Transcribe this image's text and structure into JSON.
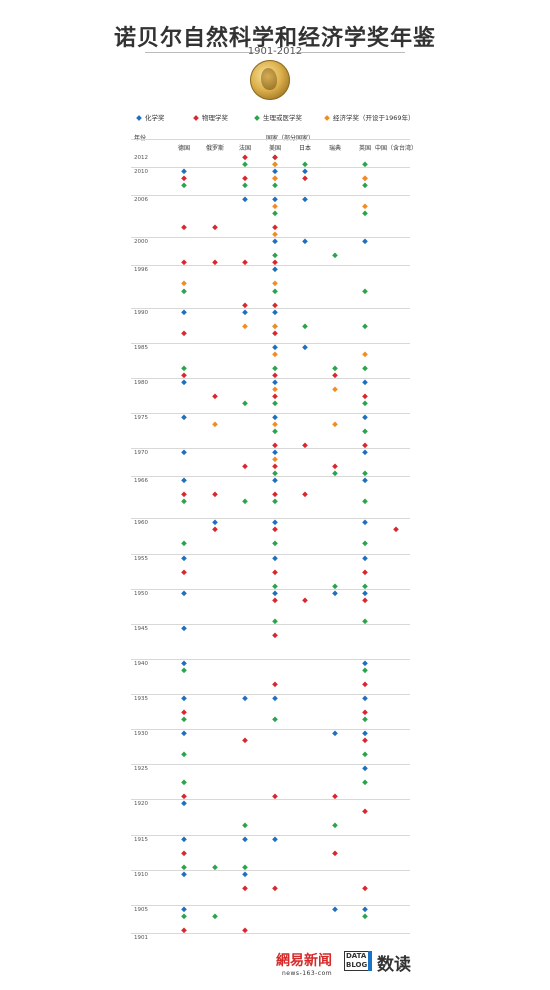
{
  "header": {
    "title": "诺贝尔自然科学和经济学奖年鉴",
    "subtitle": "1901-2012"
  },
  "legend": [
    {
      "label": "化学奖",
      "color": "#1f6fc1"
    },
    {
      "label": "物理学奖",
      "color": "#d9272e"
    },
    {
      "label": "生理或医学奖",
      "color": "#2aa44a"
    },
    {
      "label": "经济学奖（开设于1969年）",
      "color": "#f28c20"
    }
  ],
  "axis": {
    "year_label": "年份",
    "country_group_label": "国家（部分国家）"
  },
  "footer": {
    "netease": "網易新闻",
    "netease_url": "news-163-com",
    "datablog": "DATA BLOG",
    "shudu": "数读"
  },
  "chart_data": {
    "type": "scatter",
    "title": "诺贝尔自然科学和经济学奖年鉴",
    "subtitle": "1901-2012",
    "xlabel": "国家（部分国家）",
    "ylabel": "年份",
    "countries": [
      "德国",
      "俄罗斯",
      "法国",
      "美国",
      "日本",
      "瑞典",
      "英国",
      "中国（含台湾）"
    ],
    "year_ticks": [
      2012,
      2010,
      2006,
      2000,
      1996,
      1990,
      1985,
      1980,
      1975,
      1970,
      1966,
      1960,
      1955,
      1950,
      1945,
      1940,
      1935,
      1930,
      1925,
      1920,
      1915,
      1910,
      1905,
      1901
    ],
    "ylim": [
      1901,
      2012
    ],
    "series": [
      {
        "name": "化学奖",
        "color": "#1f6fc1",
        "points": [
          {
            "country": "美国",
            "year": 2012
          },
          {
            "country": "德国",
            "year": 2010
          },
          {
            "country": "美国",
            "year": 2010
          },
          {
            "country": "日本",
            "year": 2010
          },
          {
            "country": "法国",
            "year": 2006
          },
          {
            "country": "美国",
            "year": 2006
          },
          {
            "country": "日本",
            "year": 2006
          },
          {
            "country": "美国",
            "year": 2000
          },
          {
            "country": "日本",
            "year": 2000
          },
          {
            "country": "英国",
            "year": 2000
          },
          {
            "country": "美国",
            "year": 1996
          },
          {
            "country": "德国",
            "year": 1990
          },
          {
            "country": "法国",
            "year": 1990
          },
          {
            "country": "美国",
            "year": 1990
          },
          {
            "country": "美国",
            "year": 1985
          },
          {
            "country": "日本",
            "year": 1985
          },
          {
            "country": "德国",
            "year": 1980
          },
          {
            "country": "美国",
            "year": 1980
          },
          {
            "country": "英国",
            "year": 1980
          },
          {
            "country": "德国",
            "year": 1975
          },
          {
            "country": "美国",
            "year": 1975
          },
          {
            "country": "英国",
            "year": 1975
          },
          {
            "country": "德国",
            "year": 1970
          },
          {
            "country": "美国",
            "year": 1970
          },
          {
            "country": "英国",
            "year": 1970
          },
          {
            "country": "德国",
            "year": 1966
          },
          {
            "country": "美国",
            "year": 1966
          },
          {
            "country": "英国",
            "year": 1966
          },
          {
            "country": "俄罗斯",
            "year": 1960
          },
          {
            "country": "美国",
            "year": 1960
          },
          {
            "country": "英国",
            "year": 1960
          },
          {
            "country": "德国",
            "year": 1955
          },
          {
            "country": "美国",
            "year": 1955
          },
          {
            "country": "英国",
            "year": 1955
          },
          {
            "country": "德国",
            "year": 1950
          },
          {
            "country": "美国",
            "year": 1950
          },
          {
            "country": "瑞典",
            "year": 1950
          },
          {
            "country": "英国",
            "year": 1950
          },
          {
            "country": "德国",
            "year": 1945
          },
          {
            "country": "德国",
            "year": 1940
          },
          {
            "country": "英国",
            "year": 1940
          },
          {
            "country": "德国",
            "year": 1935
          },
          {
            "country": "法国",
            "year": 1935
          },
          {
            "country": "美国",
            "year": 1935
          },
          {
            "country": "英国",
            "year": 1935
          },
          {
            "country": "德国",
            "year": 1930
          },
          {
            "country": "瑞典",
            "year": 1930
          },
          {
            "country": "英国",
            "year": 1930
          },
          {
            "country": "英国",
            "year": 1925
          },
          {
            "country": "德国",
            "year": 1920
          },
          {
            "country": "德国",
            "year": 1915
          },
          {
            "country": "法国",
            "year": 1915
          },
          {
            "country": "美国",
            "year": 1915
          },
          {
            "country": "德国",
            "year": 1910
          },
          {
            "country": "法国",
            "year": 1910
          },
          {
            "country": "德国",
            "year": 1905
          },
          {
            "country": "瑞典",
            "year": 1905
          },
          {
            "country": "英国",
            "year": 1905
          }
        ]
      },
      {
        "name": "物理学奖",
        "color": "#d9272e",
        "points": [
          {
            "country": "法国",
            "year": 2012
          },
          {
            "country": "美国",
            "year": 2012
          },
          {
            "country": "德国",
            "year": 2009
          },
          {
            "country": "法国",
            "year": 2009
          },
          {
            "country": "美国",
            "year": 2009
          },
          {
            "country": "英国",
            "year": 2009
          },
          {
            "country": "日本",
            "year": 2009
          },
          {
            "country": "德国",
            "year": 2002
          },
          {
            "country": "俄罗斯",
            "year": 2002
          },
          {
            "country": "美国",
            "year": 2002
          },
          {
            "country": "德国",
            "year": 1997
          },
          {
            "country": "俄罗斯",
            "year": 1997
          },
          {
            "country": "法国",
            "year": 1997
          },
          {
            "country": "美国",
            "year": 1997
          },
          {
            "country": "法国",
            "year": 1991
          },
          {
            "country": "美国",
            "year": 1991
          },
          {
            "country": "德国",
            "year": 1987
          },
          {
            "country": "美国",
            "year": 1987
          },
          {
            "country": "德国",
            "year": 1981
          },
          {
            "country": "美国",
            "year": 1981
          },
          {
            "country": "瑞典",
            "year": 1981
          },
          {
            "country": "俄罗斯",
            "year": 1978
          },
          {
            "country": "美国",
            "year": 1978
          },
          {
            "country": "英国",
            "year": 1978
          },
          {
            "country": "美国",
            "year": 1971
          },
          {
            "country": "日本",
            "year": 1971
          },
          {
            "country": "英国",
            "year": 1971
          },
          {
            "country": "法国",
            "year": 1968
          },
          {
            "country": "美国",
            "year": 1968
          },
          {
            "country": "瑞典",
            "year": 1968
          },
          {
            "country": "德国",
            "year": 1964
          },
          {
            "country": "俄罗斯",
            "year": 1964
          },
          {
            "country": "美国",
            "year": 1964
          },
          {
            "country": "日本",
            "year": 1964
          },
          {
            "country": "俄罗斯",
            "year": 1959
          },
          {
            "country": "美国",
            "year": 1959
          },
          {
            "country": "中国（含台湾）",
            "year": 1959
          },
          {
            "country": "德国",
            "year": 1953
          },
          {
            "country": "美国",
            "year": 1953
          },
          {
            "country": "英国",
            "year": 1953
          },
          {
            "country": "美国",
            "year": 1949
          },
          {
            "country": "日本",
            "year": 1949
          },
          {
            "country": "英国",
            "year": 1949
          },
          {
            "country": "美国",
            "year": 1944
          },
          {
            "country": "美国",
            "year": 1937
          },
          {
            "country": "英国",
            "year": 1937
          },
          {
            "country": "德国",
            "year": 1933
          },
          {
            "country": "英国",
            "year": 1933
          },
          {
            "country": "法国",
            "year": 1929
          },
          {
            "country": "英国",
            "year": 1929
          },
          {
            "country": "德国",
            "year": 1921
          },
          {
            "country": "美国",
            "year": 1921
          },
          {
            "country": "瑞典",
            "year": 1921
          },
          {
            "country": "英国",
            "year": 1919
          },
          {
            "country": "德国",
            "year": 1913
          },
          {
            "country": "瑞典",
            "year": 1913
          },
          {
            "country": "法国",
            "year": 1908
          },
          {
            "country": "美国",
            "year": 1908
          },
          {
            "country": "英国",
            "year": 1908
          },
          {
            "country": "德国",
            "year": 1902
          },
          {
            "country": "法国",
            "year": 1902
          }
        ]
      },
      {
        "name": "生理或医学奖",
        "color": "#2aa44a",
        "points": [
          {
            "country": "法国",
            "year": 2011
          },
          {
            "country": "美国",
            "year": 2011
          },
          {
            "country": "日本",
            "year": 2011
          },
          {
            "country": "英国",
            "year": 2011
          },
          {
            "country": "德国",
            "year": 2008
          },
          {
            "country": "法国",
            "year": 2008
          },
          {
            "country": "美国",
            "year": 2008
          },
          {
            "country": "英国",
            "year": 2008
          },
          {
            "country": "美国",
            "year": 2004
          },
          {
            "country": "英国",
            "year": 2004
          },
          {
            "country": "美国",
            "year": 1998
          },
          {
            "country": "瑞典",
            "year": 1998
          },
          {
            "country": "美国",
            "year": 1993
          },
          {
            "country": "英国",
            "year": 1993
          },
          {
            "country": "德国",
            "year": 1993
          },
          {
            "country": "美国",
            "year": 1988
          },
          {
            "country": "日本",
            "year": 1988
          },
          {
            "country": "英国",
            "year": 1988
          },
          {
            "country": "德国",
            "year": 1982
          },
          {
            "country": "美国",
            "year": 1982
          },
          {
            "country": "瑞典",
            "year": 1982
          },
          {
            "country": "英国",
            "year": 1982
          },
          {
            "country": "法国",
            "year": 1977
          },
          {
            "country": "美国",
            "year": 1977
          },
          {
            "country": "英国",
            "year": 1977
          },
          {
            "country": "美国",
            "year": 1973
          },
          {
            "country": "英国",
            "year": 1973
          },
          {
            "country": "美国",
            "year": 1967
          },
          {
            "country": "瑞典",
            "year": 1967
          },
          {
            "country": "英国",
            "year": 1967
          },
          {
            "country": "德国",
            "year": 1963
          },
          {
            "country": "法国",
            "year": 1963
          },
          {
            "country": "美国",
            "year": 1963
          },
          {
            "country": "英国",
            "year": 1963
          },
          {
            "country": "德国",
            "year": 1957
          },
          {
            "country": "美国",
            "year": 1957
          },
          {
            "country": "英国",
            "year": 1957
          },
          {
            "country": "美国",
            "year": 1951
          },
          {
            "country": "瑞典",
            "year": 1951
          },
          {
            "country": "英国",
            "year": 1951
          },
          {
            "country": "美国",
            "year": 1946
          },
          {
            "country": "英国",
            "year": 1946
          },
          {
            "country": "德国",
            "year": 1939
          },
          {
            "country": "英国",
            "year": 1939
          },
          {
            "country": "德国",
            "year": 1932
          },
          {
            "country": "美国",
            "year": 1932
          },
          {
            "country": "英国",
            "year": 1932
          },
          {
            "country": "德国",
            "year": 1927
          },
          {
            "country": "英国",
            "year": 1927
          },
          {
            "country": "德国",
            "year": 1923
          },
          {
            "country": "英国",
            "year": 1923
          },
          {
            "country": "法国",
            "year": 1917
          },
          {
            "country": "瑞典",
            "year": 1917
          },
          {
            "country": "德国",
            "year": 1911
          },
          {
            "country": "俄罗斯",
            "year": 1911
          },
          {
            "country": "法国",
            "year": 1911
          },
          {
            "country": "德国",
            "year": 1904
          },
          {
            "country": "俄罗斯",
            "year": 1904
          },
          {
            "country": "英国",
            "year": 1904
          }
        ]
      },
      {
        "name": "经济学奖（开设于1969年）",
        "color": "#f28c20",
        "points": [
          {
            "country": "美国",
            "year": 2011
          },
          {
            "country": "美国",
            "year": 2009
          },
          {
            "country": "英国",
            "year": 2009
          },
          {
            "country": "美国",
            "year": 2005
          },
          {
            "country": "英国",
            "year": 2005
          },
          {
            "country": "美国",
            "year": 2001
          },
          {
            "country": "德国",
            "year": 1994
          },
          {
            "country": "美国",
            "year": 1994
          },
          {
            "country": "法国",
            "year": 1988
          },
          {
            "country": "美国",
            "year": 1988
          },
          {
            "country": "美国",
            "year": 1984
          },
          {
            "country": "英国",
            "year": 1984
          },
          {
            "country": "美国",
            "year": 1979
          },
          {
            "country": "瑞典",
            "year": 1979
          },
          {
            "country": "俄罗斯",
            "year": 1974
          },
          {
            "country": "美国",
            "year": 1974
          },
          {
            "country": "瑞典",
            "year": 1974
          },
          {
            "country": "美国",
            "year": 1969
          }
        ]
      }
    ]
  }
}
